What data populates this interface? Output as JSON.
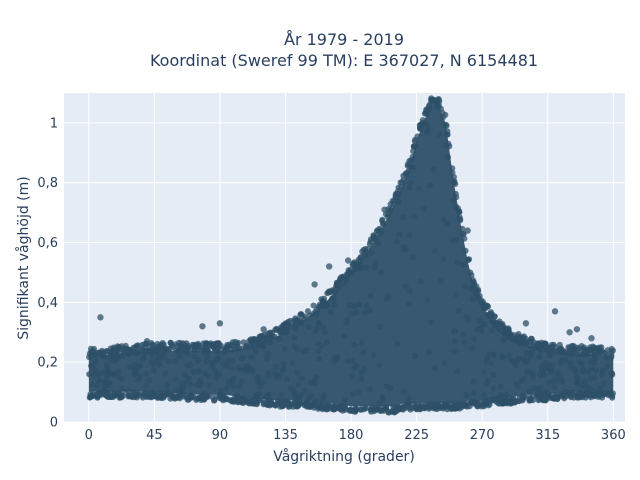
{
  "chart_data": {
    "type": "scatter",
    "title_line1": "År 1979 - 2019",
    "title_line2": "Koordinat (Sweref 99 TM): E 367027, N 6154481",
    "xlabel": "Vågriktning (grader)",
    "ylabel": "Signifikant våghöjd (m)",
    "xlim": [
      -17,
      368
    ],
    "ylim": [
      0,
      1.1
    ],
    "x_ticks": [
      0,
      45,
      90,
      135,
      180,
      225,
      270,
      315,
      360
    ],
    "x_tick_labels": [
      "0",
      "45",
      "90",
      "135",
      "180",
      "225",
      "270",
      "315",
      "360"
    ],
    "y_ticks": [
      0,
      0.2,
      0.4,
      0.6,
      0.8,
      1
    ],
    "y_tick_labels": [
      "0",
      "0,2",
      "0,4",
      "0,6",
      "0,8",
      "1"
    ],
    "grid": true,
    "marker_color": "#2d5068",
    "plot_bg": "#e5ecf6",
    "envelope": {
      "x": [
        0,
        20,
        45,
        70,
        90,
        110,
        130,
        150,
        160,
        170,
        180,
        190,
        200,
        210,
        215,
        220,
        225,
        230,
        235,
        240,
        245,
        250,
        255,
        260,
        265,
        270,
        280,
        290,
        300,
        315,
        330,
        345,
        360
      ],
      "y_min": [
        0.09,
        0.09,
        0.09,
        0.08,
        0.08,
        0.07,
        0.06,
        0.06,
        0.05,
        0.05,
        0.04,
        0.04,
        0.04,
        0.04,
        0.05,
        0.05,
        0.05,
        0.05,
        0.05,
        0.05,
        0.05,
        0.05,
        0.05,
        0.06,
        0.06,
        0.06,
        0.07,
        0.07,
        0.08,
        0.08,
        0.09,
        0.09,
        0.09
      ],
      "y_max": [
        0.23,
        0.24,
        0.25,
        0.25,
        0.25,
        0.26,
        0.3,
        0.36,
        0.4,
        0.45,
        0.51,
        0.57,
        0.65,
        0.74,
        0.8,
        0.86,
        0.95,
        1.02,
        1.07,
        1.07,
        1.01,
        0.83,
        0.68,
        0.55,
        0.45,
        0.4,
        0.33,
        0.29,
        0.27,
        0.25,
        0.24,
        0.24,
        0.23
      ]
    },
    "outliers": [
      {
        "x": 8,
        "y": 0.35
      },
      {
        "x": 78,
        "y": 0.32
      },
      {
        "x": 90,
        "y": 0.33
      },
      {
        "x": 155,
        "y": 0.46
      },
      {
        "x": 165,
        "y": 0.52
      },
      {
        "x": 178,
        "y": 0.54
      },
      {
        "x": 203,
        "y": 0.71
      },
      {
        "x": 250,
        "y": 0.74
      },
      {
        "x": 252,
        "y": 0.72
      },
      {
        "x": 260,
        "y": 0.64
      },
      {
        "x": 320,
        "y": 0.37
      },
      {
        "x": 330,
        "y": 0.3
      },
      {
        "x": 335,
        "y": 0.31
      },
      {
        "x": 345,
        "y": 0.28
      },
      {
        "x": 40,
        "y": 0.27
      },
      {
        "x": 120,
        "y": 0.31
      },
      {
        "x": 300,
        "y": 0.33
      }
    ]
  }
}
